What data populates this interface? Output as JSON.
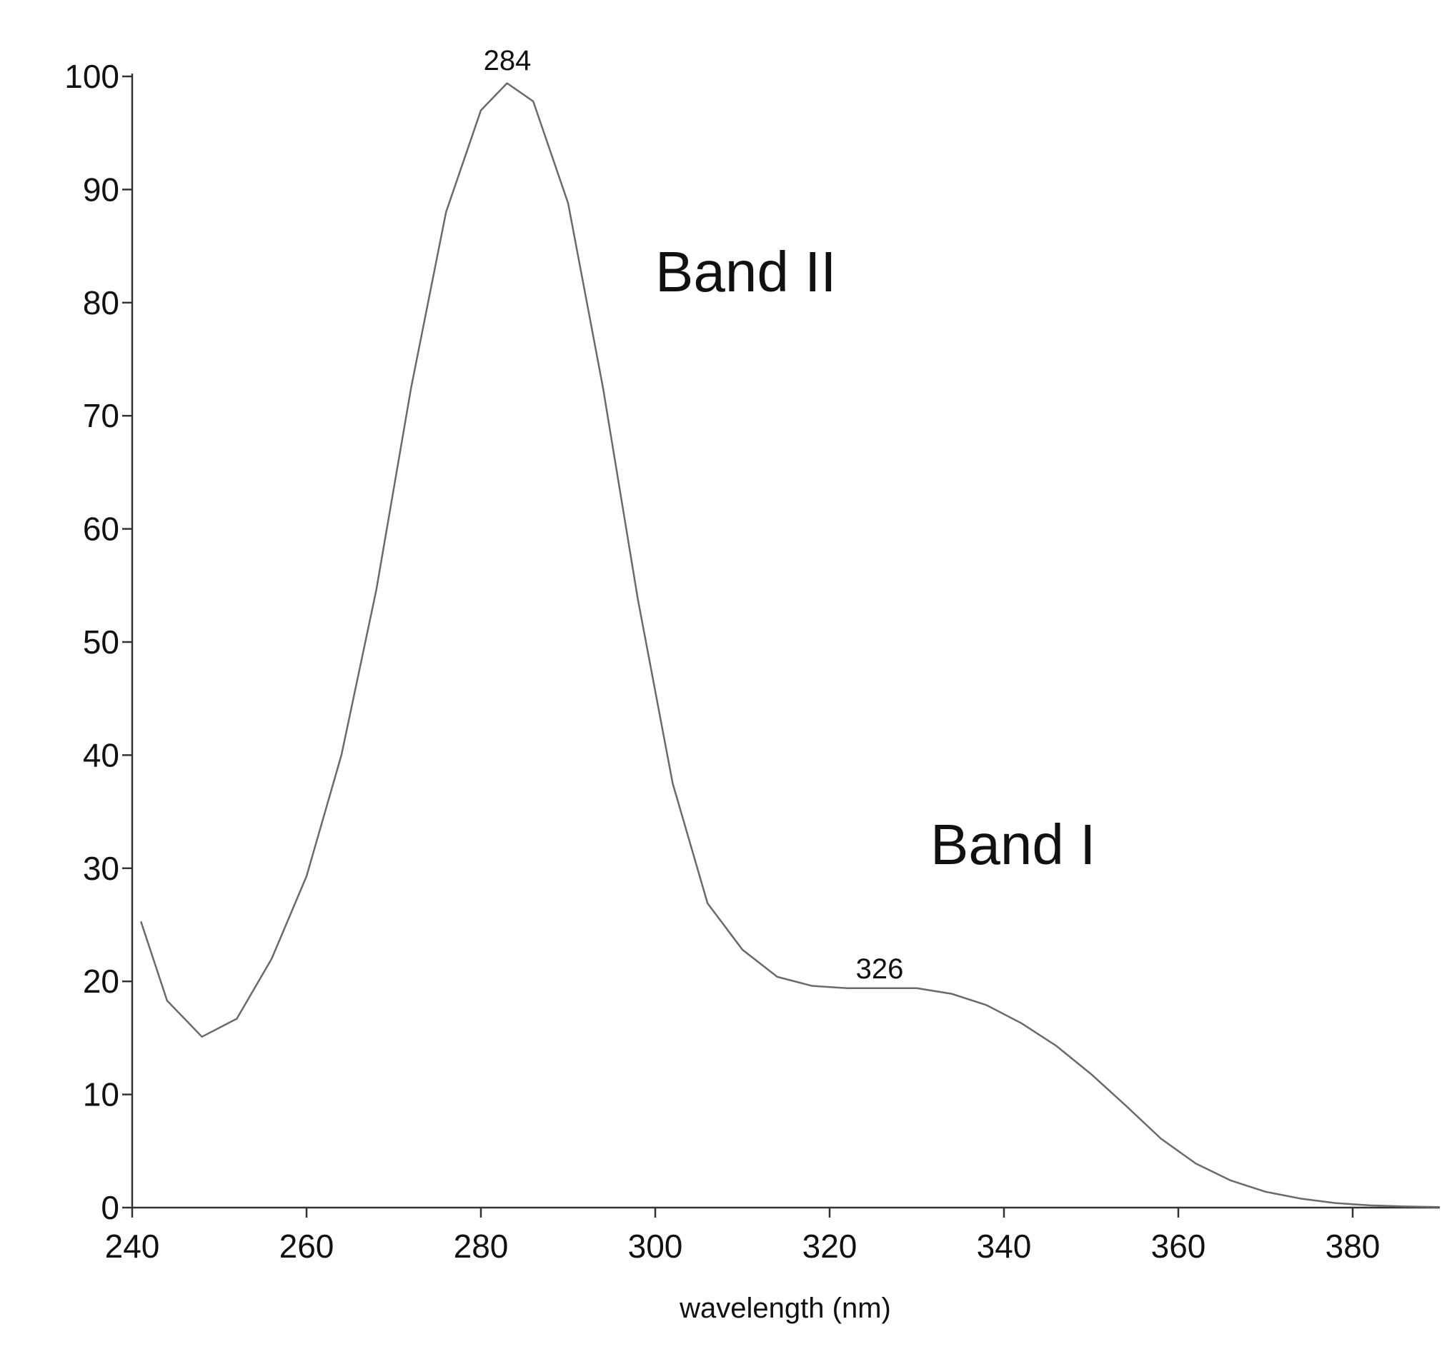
{
  "chart_data": {
    "type": "line",
    "x_label": "wavelength (nm)",
    "annotations": [
      "284",
      "326",
      "Band II",
      "Band I"
    ],
    "xlim": [
      240,
      390
    ],
    "xticks": [
      240,
      260,
      280,
      300,
      320,
      340,
      360,
      380
    ],
    "ylim": [
      0,
      100
    ],
    "yticks": [
      0,
      10,
      20,
      30,
      40,
      50,
      60,
      70,
      80,
      90,
      100
    ],
    "grid": false,
    "series": [
      {
        "color": "#6a6a6a",
        "x": [
          241,
          244,
          248,
          252,
          256,
          260,
          264,
          268,
          272,
          276,
          280,
          283,
          286,
          290,
          294,
          298,
          302,
          306,
          310,
          314,
          318,
          322,
          326,
          330,
          334,
          338,
          342,
          346,
          350,
          354,
          358,
          362,
          366,
          370,
          374,
          378,
          382,
          386,
          390
        ],
        "values": [
          25.3,
          18.3,
          15.1,
          16.7,
          22,
          29.3,
          40,
          54.6,
          72.5,
          88,
          97,
          99.4,
          97.8,
          88.8,
          72.5,
          53.8,
          37.5,
          26.9,
          22.8,
          20.4,
          19.6,
          19.4,
          19.4,
          19.4,
          18.9,
          17.9,
          16.3,
          14.3,
          11.8,
          9,
          6.1,
          3.9,
          2.4,
          1.4,
          0.8,
          0.4,
          0.2,
          0.1,
          0.05
        ]
      }
    ]
  }
}
